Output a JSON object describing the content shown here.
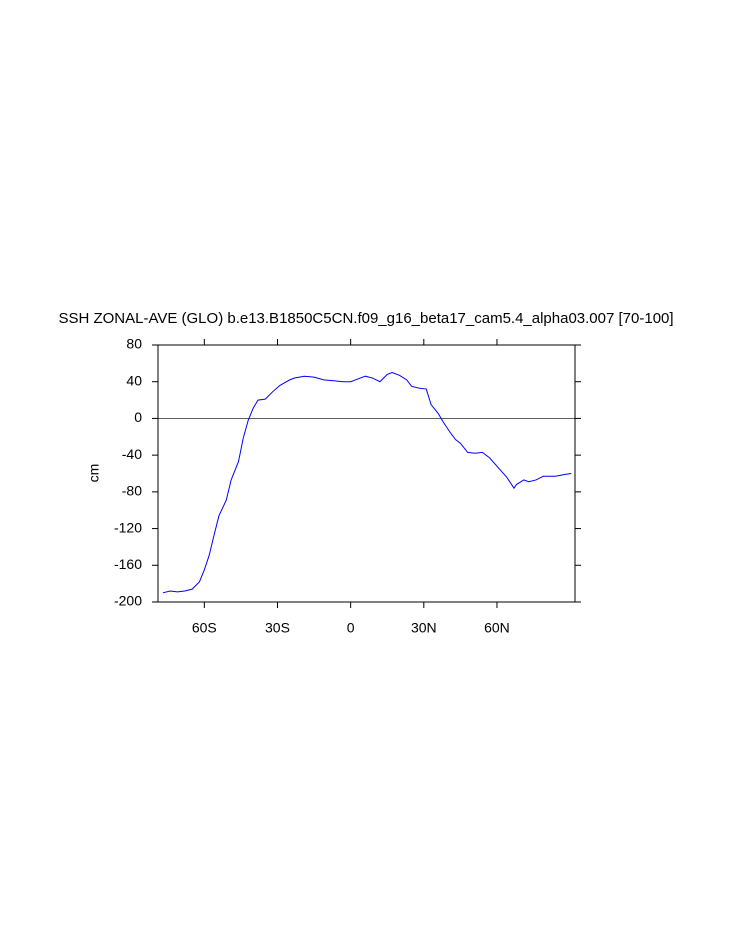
{
  "chart_data": {
    "type": "line",
    "title": "SSH ZONAL-AVE (GLO) b.e13.B1850C5CN.f09_g16_beta17_cam5.4_alpha03.007 [70-100]",
    "ylabel": "cm",
    "x": [
      -77,
      -74,
      -71,
      -68,
      -65,
      -62,
      -60,
      -58,
      -56,
      -54,
      -51,
      -49,
      -46,
      -44,
      -42,
      -40,
      -38,
      -35,
      -32,
      -29,
      -25,
      -23,
      -19,
      -15,
      -11,
      -7,
      -3,
      0,
      3,
      6,
      9,
      12,
      15,
      17,
      20,
      23,
      25,
      28,
      31,
      33,
      36,
      38,
      41,
      43,
      45,
      48,
      51,
      54,
      57,
      59,
      62,
      64,
      67,
      68,
      71,
      73,
      76,
      79,
      84,
      88,
      90.5
    ],
    "series": [
      {
        "color": "#0000ff",
        "values": [
          -190,
          -188,
          -189,
          -188,
          -186,
          -178,
          -165,
          -149,
          -127,
          -106,
          -89,
          -67,
          -47,
          -21,
          -2,
          11,
          20,
          21,
          29,
          36,
          42,
          44,
          46,
          45,
          42,
          41,
          40,
          40,
          43,
          46,
          44,
          40,
          48,
          50,
          47,
          42,
          35,
          33,
          32,
          15,
          5,
          -4,
          -16,
          -23,
          -27,
          -37,
          -38,
          -37,
          -43,
          -49,
          -58,
          -64,
          -76,
          -72,
          -67,
          -69,
          -67,
          -63,
          -63,
          -61,
          -60
        ]
      }
    ],
    "xlim": [
      -79,
      92
    ],
    "ylim": [
      -200,
      80
    ],
    "xticks": [
      {
        "value": -60,
        "label": "60S"
      },
      {
        "value": -30,
        "label": "30S"
      },
      0,
      {
        "value": 30,
        "label": "30N"
      },
      {
        "value": 60,
        "label": "60N"
      }
    ],
    "yticks": [
      -200,
      -160,
      -120,
      -80,
      -40,
      0,
      40,
      80
    ],
    "reference_line": 0,
    "grid": false
  }
}
